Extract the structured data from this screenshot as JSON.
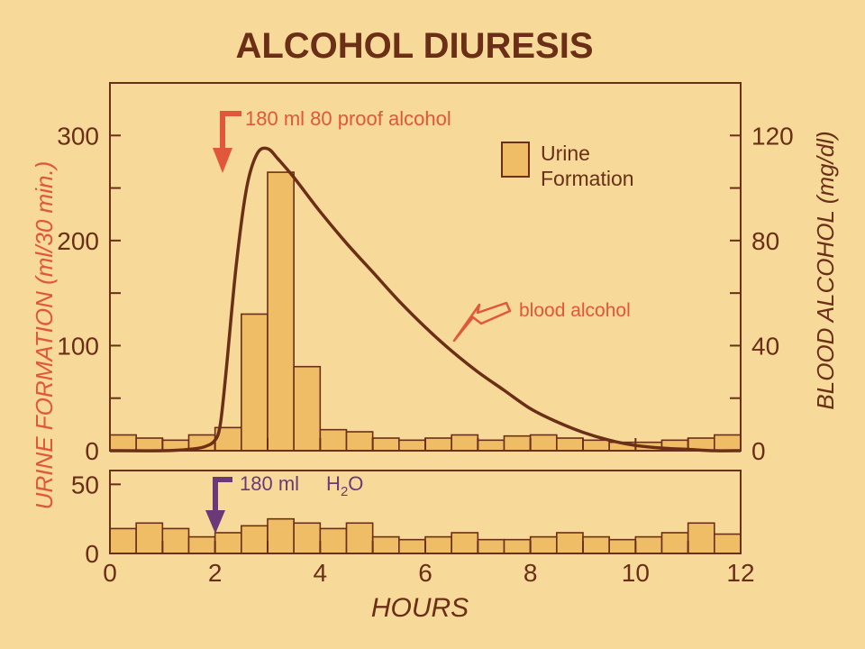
{
  "colors": {
    "background": "#f7d99a",
    "ink": "#6a2f16",
    "bar_fill": "#efbd66",
    "accent_red": "#e0573a",
    "accent_purple": "#6a3a78"
  },
  "chart_data": [
    {
      "type": "bar",
      "title": "ALCOHOL DIURESIS",
      "xlabel": "",
      "ylabel_left": "URINE FORMATION  (ml/30 min.)",
      "ylabel_right": "BLOOD ALCOHOL (mg/dl)",
      "xlim": [
        0,
        12
      ],
      "ylim": [
        0,
        350
      ],
      "yticks_left": [
        {
          "value": 0,
          "label": "0"
        },
        {
          "value": 100,
          "label": "100"
        },
        {
          "value": 200,
          "label": "200"
        },
        {
          "value": 300,
          "label": "300"
        }
      ],
      "y2lim": [
        0,
        140
      ],
      "yticks_right": [
        {
          "value": 0,
          "label": "0"
        },
        {
          "value": 40,
          "label": "40"
        },
        {
          "value": 80,
          "label": "80"
        },
        {
          "value": 120,
          "label": "120"
        }
      ],
      "bin_width_hours": 0.5,
      "bar_x_start": [
        0,
        0.5,
        1,
        1.5,
        2,
        2.5,
        3,
        3.5,
        4,
        4.5,
        5,
        5.5,
        6,
        6.5,
        7,
        7.5,
        8,
        8.5,
        9,
        9.5,
        10,
        10.5,
        11,
        11.5
      ],
      "series": [
        {
          "name": "Urine Formation",
          "values": [
            15,
            12,
            10,
            15,
            22,
            130,
            265,
            80,
            20,
            18,
            12,
            10,
            12,
            15,
            10,
            14,
            15,
            12,
            10,
            8,
            8,
            10,
            12,
            15
          ]
        },
        {
          "name": "blood alcohol",
          "kind": "line",
          "axis": "right",
          "x": [
            0,
            1,
            1.5,
            1.8,
            2,
            2.1,
            2.2,
            2.4,
            2.6,
            2.8,
            3,
            3.2,
            3.5,
            4,
            4.5,
            5,
            5.5,
            6,
            6.5,
            7,
            7.5,
            8,
            8.5,
            9,
            9.5,
            10,
            10.5,
            11,
            11.5,
            12
          ],
          "values": [
            0,
            0,
            0.5,
            1.5,
            4,
            10,
            28,
            70,
            100,
            113,
            115,
            111,
            104,
            91,
            79,
            68,
            57,
            47,
            38,
            30,
            23,
            16,
            11,
            7,
            4,
            2,
            1,
            0.5,
            0,
            0
          ]
        }
      ],
      "annotations": [
        {
          "text": "180 ml  80 proof alcohol",
          "x": 2
        },
        {
          "text": "blood  alcohol"
        }
      ]
    },
    {
      "type": "bar",
      "title": "",
      "xlabel": "HOURS",
      "xlim": [
        0,
        12
      ],
      "xticks": [
        {
          "value": 0,
          "label": "0"
        },
        {
          "value": 2,
          "label": "2"
        },
        {
          "value": 4,
          "label": "4"
        },
        {
          "value": 6,
          "label": "6"
        },
        {
          "value": 8,
          "label": "8"
        },
        {
          "value": 10,
          "label": "10"
        },
        {
          "value": 12,
          "label": "12"
        }
      ],
      "ylim": [
        0,
        60
      ],
      "yticks_left": [
        {
          "value": 0,
          "label": "0"
        },
        {
          "value": 50,
          "label": "50"
        }
      ],
      "bin_width_hours": 0.5,
      "bar_x_start": [
        0,
        0.5,
        1,
        1.5,
        2,
        2.5,
        3,
        3.5,
        4,
        4.5,
        5,
        5.5,
        6,
        6.5,
        7,
        7.5,
        8,
        8.5,
        9,
        9.5,
        10,
        10.5,
        11,
        11.5
      ],
      "series": [
        {
          "name": "",
          "values": [
            18,
            22,
            18,
            12,
            15,
            20,
            25,
            22,
            18,
            22,
            12,
            10,
            12,
            15,
            10,
            10,
            12,
            15,
            12,
            10,
            12,
            15,
            22,
            14
          ]
        }
      ],
      "annotations": [
        {
          "text_prefix": "180 ml",
          "text_main": "H",
          "text_sub": "2",
          "text_suffix": "O",
          "x": 2
        }
      ]
    }
  ],
  "legend": {
    "label_line1": "Urine",
    "label_line2": "Formation"
  }
}
